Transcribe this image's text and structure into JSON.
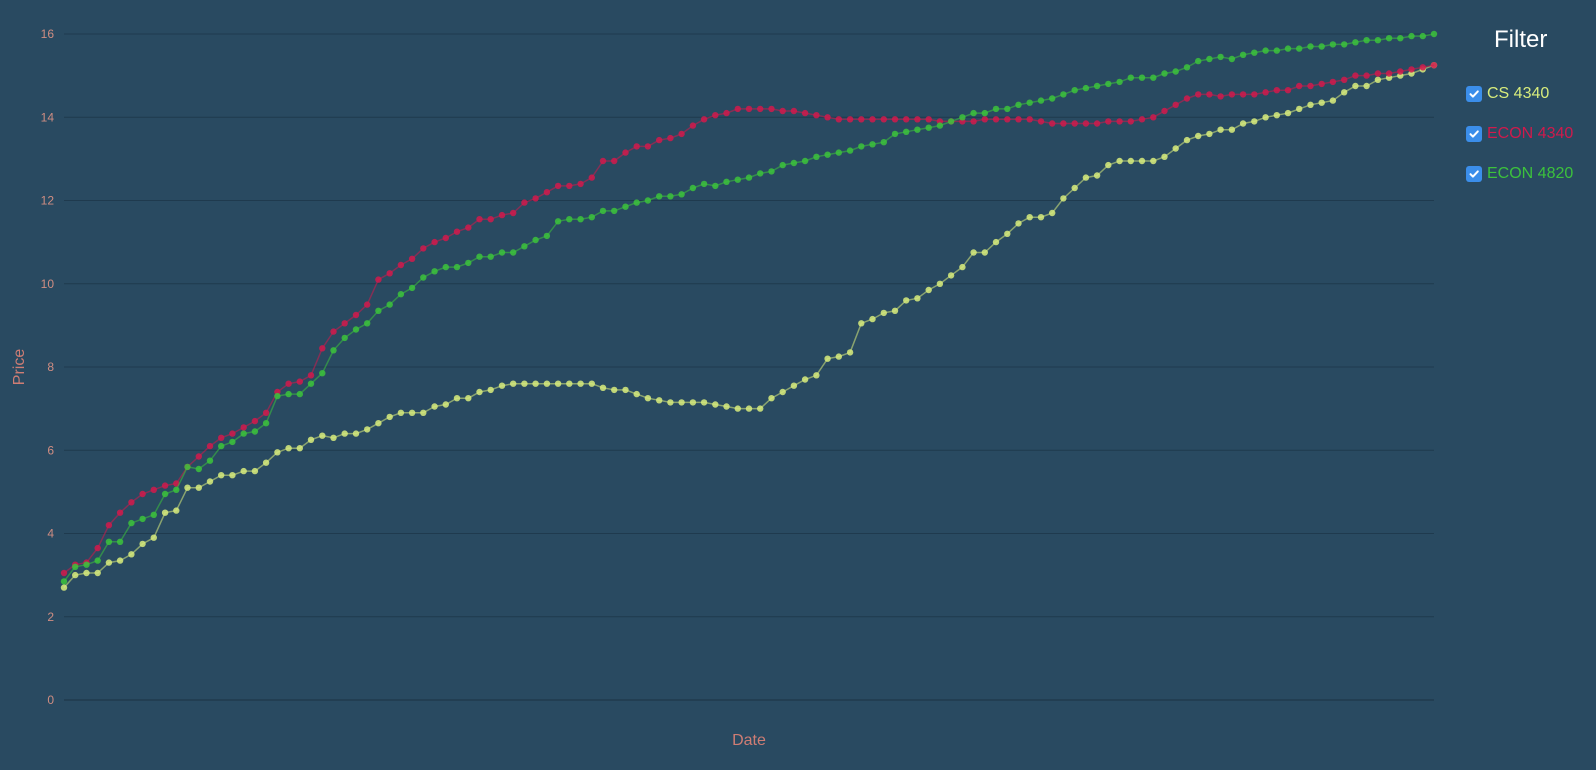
{
  "colors": {
    "background": "#294a61",
    "axis_text": "#cf8d82",
    "grid": "#1f3a4e",
    "checkbox": "#3b8eea"
  },
  "filter": {
    "title": "Filter",
    "items": [
      {
        "label": "CS 4340",
        "color": "#d8ec7c",
        "checked": true
      },
      {
        "label": "ECON 4340",
        "color": "#d01a4c",
        "checked": true
      },
      {
        "label": "ECON 4820",
        "color": "#3cc23c",
        "checked": true
      }
    ]
  },
  "chart_data": {
    "type": "line",
    "xlabel": "Date",
    "ylabel": "Price",
    "ylim": [
      0,
      16
    ],
    "yticks": [
      "0",
      "2",
      "4",
      "6",
      "8",
      "10",
      "12",
      "14",
      "16"
    ],
    "grid": true,
    "legend_placement": "right",
    "series": [
      {
        "name": "CS 4340",
        "color": "#d8ec7c",
        "values": [
          2.7,
          3.0,
          3.05,
          3.05,
          3.3,
          3.35,
          3.5,
          3.75,
          3.9,
          4.5,
          4.55,
          5.1,
          5.1,
          5.25,
          5.4,
          5.4,
          5.5,
          5.5,
          5.7,
          5.95,
          6.05,
          6.05,
          6.25,
          6.35,
          6.3,
          6.4,
          6.4,
          6.5,
          6.65,
          6.8,
          6.9,
          6.9,
          6.9,
          7.05,
          7.1,
          7.25,
          7.25,
          7.4,
          7.45,
          7.55,
          7.6,
          7.6,
          7.6,
          7.6,
          7.6,
          7.6,
          7.6,
          7.6,
          7.5,
          7.45,
          7.45,
          7.35,
          7.25,
          7.2,
          7.15,
          7.15,
          7.15,
          7.15,
          7.1,
          7.05,
          7.0,
          7.0,
          7.0,
          7.25,
          7.4,
          7.55,
          7.7,
          7.8,
          8.2,
          8.25,
          8.35,
          9.05,
          9.15,
          9.3,
          9.35,
          9.6,
          9.65,
          9.85,
          10.0,
          10.2,
          10.4,
          10.75,
          10.75,
          11.0,
          11.2,
          11.45,
          11.6,
          11.6,
          11.7,
          12.05,
          12.3,
          12.55,
          12.6,
          12.85,
          12.95,
          12.95,
          12.95,
          12.95,
          13.05,
          13.25,
          13.45,
          13.55,
          13.6,
          13.7,
          13.7,
          13.85,
          13.9,
          14.0,
          14.05,
          14.1,
          14.2,
          14.3,
          14.35,
          14.4,
          14.6,
          14.75,
          14.75,
          14.9,
          14.95,
          15.0,
          15.05,
          15.15,
          15.25
        ]
      },
      {
        "name": "ECON 4340",
        "color": "#d01a4c",
        "values": [
          3.05,
          3.25,
          3.3,
          3.65,
          4.2,
          4.5,
          4.75,
          4.95,
          5.05,
          5.15,
          5.2,
          5.6,
          5.85,
          6.1,
          6.3,
          6.4,
          6.55,
          6.7,
          6.9,
          7.4,
          7.6,
          7.65,
          7.8,
          8.45,
          8.85,
          9.05,
          9.25,
          9.5,
          10.1,
          10.25,
          10.45,
          10.6,
          10.85,
          11.0,
          11.1,
          11.25,
          11.35,
          11.55,
          11.55,
          11.65,
          11.7,
          11.95,
          12.05,
          12.2,
          12.35,
          12.35,
          12.4,
          12.55,
          12.95,
          12.95,
          13.15,
          13.3,
          13.3,
          13.45,
          13.5,
          13.6,
          13.8,
          13.95,
          14.05,
          14.1,
          14.2,
          14.2,
          14.2,
          14.2,
          14.15,
          14.15,
          14.1,
          14.05,
          14.0,
          13.95,
          13.95,
          13.95,
          13.95,
          13.95,
          13.95,
          13.95,
          13.95,
          13.95,
          13.9,
          13.9,
          13.9,
          13.9,
          13.95,
          13.95,
          13.95,
          13.95,
          13.95,
          13.9,
          13.85,
          13.85,
          13.85,
          13.85,
          13.85,
          13.9,
          13.9,
          13.9,
          13.95,
          14.0,
          14.15,
          14.3,
          14.45,
          14.55,
          14.55,
          14.5,
          14.55,
          14.55,
          14.55,
          14.6,
          14.65,
          14.65,
          14.75,
          14.75,
          14.8,
          14.85,
          14.9,
          15.0,
          15.0,
          15.05,
          15.05,
          15.1,
          15.15,
          15.2,
          15.25
        ]
      },
      {
        "name": "ECON 4820",
        "color": "#3cc23c",
        "values": [
          2.85,
          3.2,
          3.25,
          3.35,
          3.8,
          3.8,
          4.25,
          4.35,
          4.45,
          4.95,
          5.05,
          5.6,
          5.55,
          5.75,
          6.1,
          6.2,
          6.4,
          6.45,
          6.65,
          7.3,
          7.35,
          7.35,
          7.6,
          7.85,
          8.4,
          8.7,
          8.9,
          9.05,
          9.35,
          9.5,
          9.75,
          9.9,
          10.15,
          10.3,
          10.4,
          10.4,
          10.5,
          10.65,
          10.65,
          10.75,
          10.75,
          10.9,
          11.05,
          11.15,
          11.5,
          11.55,
          11.55,
          11.6,
          11.75,
          11.75,
          11.85,
          11.95,
          12.0,
          12.1,
          12.1,
          12.15,
          12.3,
          12.4,
          12.35,
          12.45,
          12.5,
          12.55,
          12.65,
          12.7,
          12.85,
          12.9,
          12.95,
          13.05,
          13.1,
          13.15,
          13.2,
          13.3,
          13.35,
          13.4,
          13.6,
          13.65,
          13.7,
          13.75,
          13.8,
          13.9,
          14.0,
          14.1,
          14.1,
          14.2,
          14.2,
          14.3,
          14.35,
          14.4,
          14.45,
          14.55,
          14.65,
          14.7,
          14.75,
          14.8,
          14.85,
          14.95,
          14.95,
          14.95,
          15.05,
          15.1,
          15.2,
          15.35,
          15.4,
          15.45,
          15.4,
          15.5,
          15.55,
          15.6,
          15.6,
          15.65,
          15.65,
          15.7,
          15.7,
          15.75,
          15.75,
          15.8,
          15.85,
          15.85,
          15.9,
          15.9,
          15.95,
          15.95,
          16.0
        ]
      }
    ]
  }
}
